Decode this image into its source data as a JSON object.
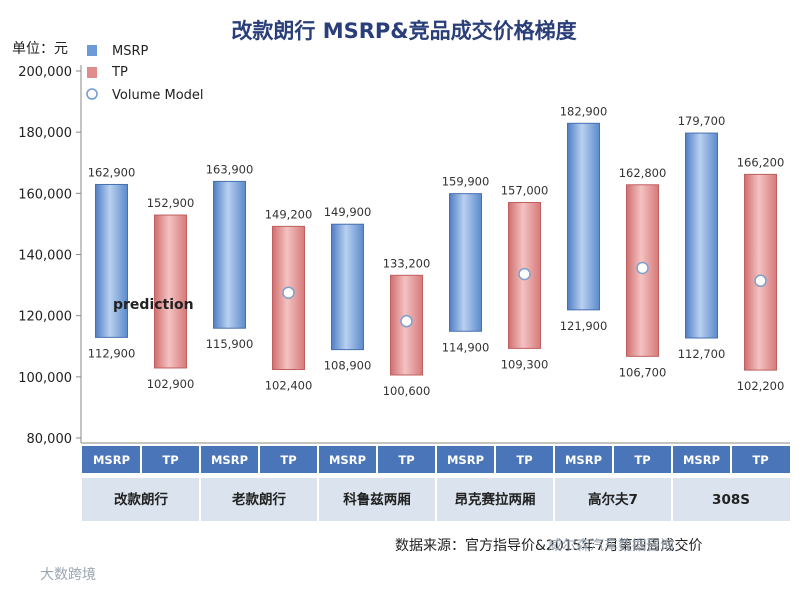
{
  "title": "改款朗行 MSRP&竞品成交价格梯度",
  "unit_label": "单位：元",
  "legend": [
    {
      "label": "MSRP",
      "color": "#6e9ad6"
    },
    {
      "label": "TP",
      "color": "#e08c8c"
    },
    {
      "label": "Volume Model",
      "color": "#ffffff"
    }
  ],
  "prediction_label": "prediction",
  "source_note": "数据来源：官方指导价&2015年7月第四周成交价",
  "watermark_left": "大数跨境",
  "watermark_right": "威尔森汽车数据咨询",
  "colors": {
    "msrp": "#6e9ad6",
    "tp": "#e08c8c",
    "band": "#4a75b8",
    "group_bg": "#dbe3ee"
  },
  "chart_data": {
    "type": "floating-bar",
    "title": "改款朗行 MSRP&竞品成交价格梯度",
    "ylabel": "单位：元",
    "ylim": [
      80000,
      200000
    ],
    "yticks": [
      80000,
      100000,
      120000,
      140000,
      160000,
      180000,
      200000
    ],
    "ytick_labels": [
      "80,000",
      "100,000",
      "120,000",
      "140,000",
      "160,000",
      "180,000",
      "200,000"
    ],
    "legend_position": "top-left",
    "categories": [
      "改款朗行",
      "老款朗行",
      "科鲁兹两厢",
      "昂克赛拉两厢",
      "高尔夫7",
      "308S"
    ],
    "series": [
      {
        "name": "MSRP",
        "low": [
          112900,
          115900,
          108900,
          114900,
          121900,
          112700
        ],
        "high": [
          162900,
          163900,
          149900,
          159900,
          182900,
          179700
        ],
        "low_labels": [
          "112,900",
          "115,900",
          "108,900",
          "114,900",
          "121,900",
          "112,700"
        ],
        "high_labels": [
          "162,900",
          "163,900",
          "149,900",
          "159,900",
          "182,900",
          "179,700"
        ]
      },
      {
        "name": "TP",
        "low": [
          102900,
          102400,
          100600,
          109300,
          106700,
          102200
        ],
        "high": [
          152900,
          149200,
          133200,
          157000,
          162800,
          166200
        ],
        "low_labels": [
          "102,900",
          "102,400",
          "100,600",
          "109,300",
          "106,700",
          "102,200"
        ],
        "high_labels": [
          "152,900",
          "149,200",
          "133,200",
          "157,000",
          "162,800",
          "166,200"
        ]
      },
      {
        "name": "Volume Model",
        "values": [
          null,
          127500,
          118200,
          133600,
          135600,
          131400
        ]
      }
    ],
    "sub_labels": [
      "MSRP",
      "TP"
    ]
  }
}
